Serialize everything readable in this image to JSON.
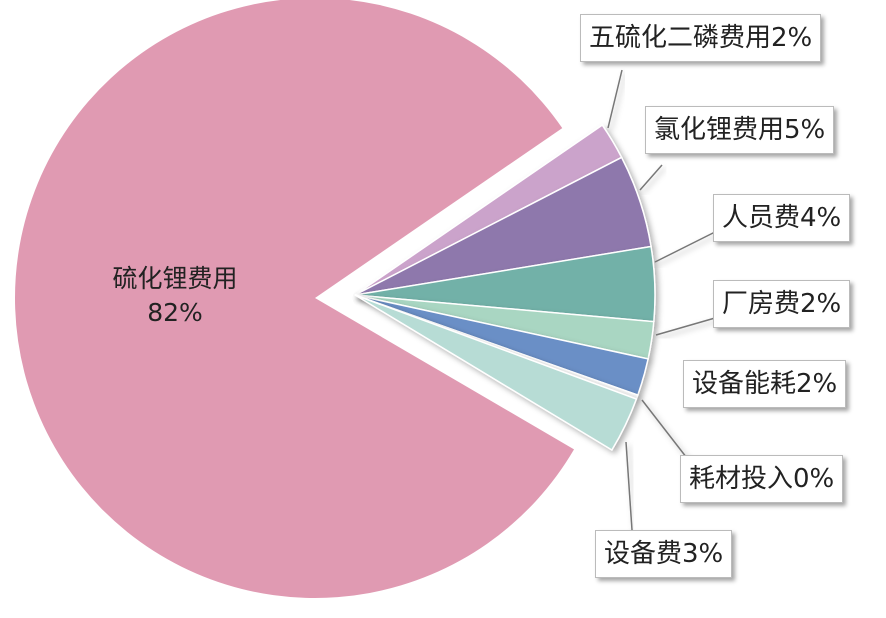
{
  "chart_data": {
    "type": "pie",
    "slices": [
      {
        "label": "硫化锂费用",
        "value": 82,
        "display": "82%",
        "color": "#e09ab2"
      },
      {
        "label": "五硫化二磷费用",
        "value": 2,
        "display": "2%",
        "color": "#cba3cb"
      },
      {
        "label": "氯化锂费用",
        "value": 5,
        "display": "5%",
        "color": "#8e78ac"
      },
      {
        "label": "人员费",
        "value": 4,
        "display": "4%",
        "color": "#72b1a8"
      },
      {
        "label": "厂房费",
        "value": 2,
        "display": "2%",
        "color": "#a9d6c2"
      },
      {
        "label": "设备能耗",
        "value": 2,
        "display": "2%",
        "color": "#6b8fc6"
      },
      {
        "label": "耗材投入",
        "value": 0,
        "display": "0%",
        "color": "#f4f4f4"
      },
      {
        "label": "设备费",
        "value": 3,
        "display": "3%",
        "color": "#b7dcd5"
      }
    ],
    "labels": {
      "main": {
        "name": "硫化锂费用",
        "pct": "82%"
      },
      "others": [
        "五硫化二磷费用2%",
        "氯化锂费用5%",
        "人员费4%",
        "厂房费2%",
        "设备能耗2%",
        "耗材投入0%",
        "设备费3%"
      ]
    },
    "legend": "none"
  }
}
